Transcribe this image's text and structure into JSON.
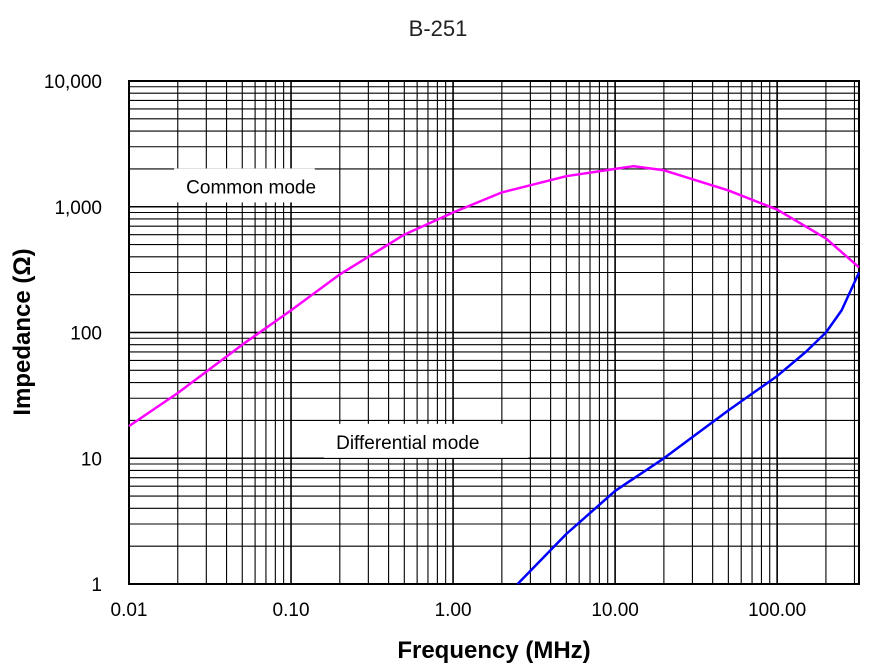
{
  "chart_data": {
    "type": "line",
    "title": "B-251",
    "xlabel": "Frequency (MHz)",
    "ylabel": "Impedance (Ω)",
    "x_scale": "log",
    "y_scale": "log",
    "xlim": [
      0.01,
      320
    ],
    "ylim": [
      1,
      10000
    ],
    "x_tick_labels": [
      {
        "value": 0.01,
        "label": "0.01"
      },
      {
        "value": 0.1,
        "label": "0.10"
      },
      {
        "value": 1,
        "label": "1.00"
      },
      {
        "value": 10,
        "label": "10.00"
      },
      {
        "value": 100,
        "label": "100.00"
      }
    ],
    "y_tick_labels": [
      {
        "value": 1,
        "label": "1"
      },
      {
        "value": 10,
        "label": "10"
      },
      {
        "value": 100,
        "label": "100"
      },
      {
        "value": 1000,
        "label": "1,000"
      },
      {
        "value": 10000,
        "label": "10,000"
      }
    ],
    "grid": true,
    "series": [
      {
        "name": "Common mode",
        "color": "#ff00ff",
        "points": [
          [
            0.01,
            18
          ],
          [
            0.02,
            33
          ],
          [
            0.05,
            80
          ],
          [
            0.1,
            150
          ],
          [
            0.2,
            290
          ],
          [
            0.5,
            600
          ],
          [
            1,
            900
          ],
          [
            2,
            1300
          ],
          [
            5,
            1750
          ],
          [
            10,
            2000
          ],
          [
            13,
            2100
          ],
          [
            20,
            1950
          ],
          [
            50,
            1350
          ],
          [
            100,
            950
          ],
          [
            200,
            560
          ],
          [
            320,
            330
          ]
        ]
      },
      {
        "name": "Differential mode",
        "color": "#0000ff",
        "points": [
          [
            2.5,
            1
          ],
          [
            5,
            2.5
          ],
          [
            10,
            5.5
          ],
          [
            20,
            10
          ],
          [
            50,
            24
          ],
          [
            100,
            45
          ],
          [
            150,
            70
          ],
          [
            200,
            100
          ],
          [
            250,
            150
          ],
          [
            320,
            300
          ]
        ]
      }
    ],
    "annotations": [
      {
        "text": "Common mode",
        "series": "Common mode"
      },
      {
        "text": "Differential mode",
        "series": "Differential mode"
      }
    ]
  }
}
